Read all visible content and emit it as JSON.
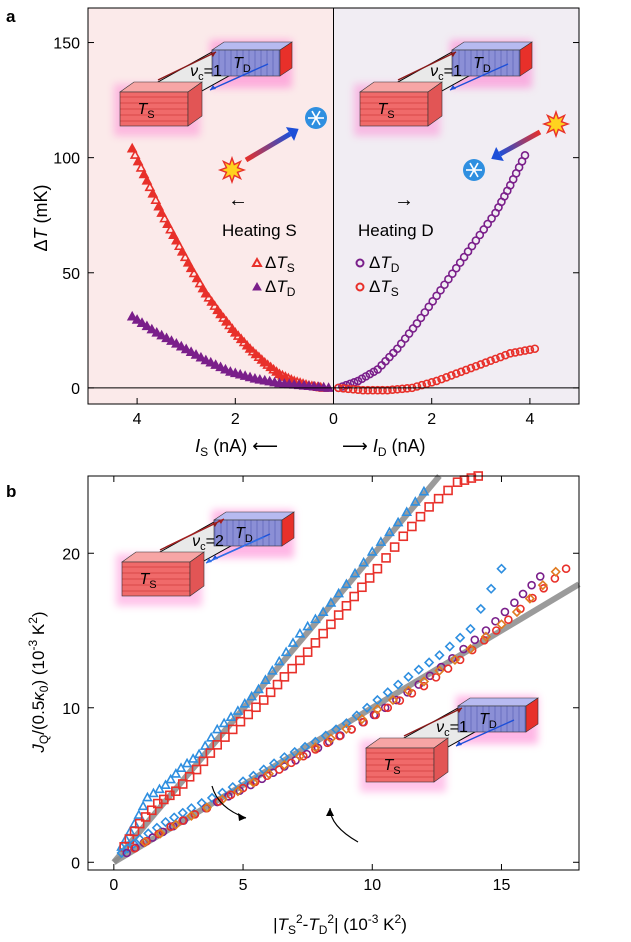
{
  "colors": {
    "red": "#e8302a",
    "purple": "#7a1f8a",
    "blue": "#2f8fe0",
    "orange": "#e07a20",
    "fit": "#8a8a8a",
    "bg_left": "#fbeaea",
    "bg_right": "#f1edf3",
    "slab_red": "#f06a6a",
    "slab_blue": "#8b8fd6",
    "glow": "#ff7ad0"
  },
  "panel_a": {
    "label": "a",
    "ylabel_delta": "Δ",
    "ylabel_var": "T",
    "ylabel_unit": " (mK)",
    "x_left": {
      "var": "I",
      "sub": "S",
      "text": " (nA) ⟵"
    },
    "x_right": {
      "pre": "⟶ ",
      "var": "I",
      "sub": "D",
      "text": " (nA)"
    },
    "arrow_left": "←",
    "arrow_right": "→",
    "heating_s": "Heating S",
    "heating_d": "Heating D",
    "legend_s": [
      {
        "delta": "Δ",
        "var": "T",
        "sub": "S"
      },
      {
        "delta": "Δ",
        "var": "T",
        "sub": "D"
      }
    ],
    "legend_d": [
      {
        "delta": "Δ",
        "var": "T",
        "sub": "D"
      },
      {
        "delta": "Δ",
        "var": "T",
        "sub": "S"
      }
    ],
    "inset": {
      "nu": "ν",
      "nu_sub": "c",
      "nu_val": "=1",
      "ts": "T",
      "ts_sub": "S",
      "td": "T",
      "td_sub": "D"
    }
  },
  "panel_b": {
    "label": "b",
    "ylabel": {
      "var": "J",
      "sub": "Q",
      "mid": "/(0.5",
      "kappa": "κ",
      "ksub": "0",
      "end": ") (10",
      "exp1": "-3",
      "unit": " K",
      "exp2": "2",
      "close": ")"
    },
    "xlabel": {
      "bar": "|",
      "var1": "T",
      "sub1": "S",
      "exp1": "2",
      "minus": "-",
      "var2": "T",
      "sub2": "D",
      "exp2": "2",
      "bar2": "|",
      "unit": " (10",
      "exp3": "-3",
      "k": " K",
      "exp4": "2",
      "close": ")"
    },
    "inset_top": {
      "nu": "ν",
      "nu_sub": "c",
      "nu_val": "=2",
      "ts": "T",
      "ts_sub": "S",
      "td": "T",
      "td_sub": "D"
    },
    "inset_bottom": {
      "nu": "ν",
      "nu_sub": "c",
      "nu_val": "=1",
      "ts": "T",
      "ts_sub": "S",
      "td": "T",
      "td_sub": "D"
    }
  },
  "chart_data": [
    {
      "type": "scatter",
      "panel": "a",
      "xlim": [
        -5,
        5
      ],
      "ylim": [
        -7,
        165
      ],
      "x_ticks": [
        "4",
        "2",
        "0",
        "2",
        "4"
      ],
      "y_ticks": [
        "0",
        "50",
        "100",
        "150"
      ],
      "series": [
        {
          "name": "ΔTS (Heating S)",
          "marker": "triangle",
          "color": "red",
          "x": [
            4.1,
            3.8,
            3.5,
            3.2,
            2.9,
            2.6,
            2.3,
            2.0,
            1.7,
            1.4,
            1.1,
            0.8,
            0.5,
            0.2
          ],
          "y": [
            104,
            90,
            76,
            64,
            52,
            41,
            32,
            24,
            17,
            11,
            6,
            3,
            1,
            0
          ]
        },
        {
          "name": "ΔTD (Heating S)",
          "marker": "triangle",
          "color": "purple",
          "x": [
            4.1,
            3.6,
            3.1,
            2.6,
            2.1,
            1.6,
            1.1,
            0.6,
            0.1
          ],
          "y": [
            31,
            24,
            18,
            12,
            7,
            4,
            2,
            1,
            0
          ]
        },
        {
          "name": "ΔTD (Heating D)",
          "marker": "circle",
          "color": "purple",
          "x": [
            0.1,
            0.5,
            0.9,
            1.3,
            1.7,
            2.1,
            2.5,
            2.9,
            3.3,
            3.6,
            3.9
          ],
          "y": [
            0,
            3,
            8,
            17,
            28,
            40,
            52,
            64,
            76,
            88,
            101
          ]
        },
        {
          "name": "ΔTS (Heating D)",
          "marker": "circle",
          "color": "red",
          "x": [
            0.1,
            0.6,
            1.1,
            1.6,
            2.1,
            2.6,
            3.1,
            3.6,
            4.1
          ],
          "y": [
            0,
            -1,
            -1,
            0,
            3,
            7,
            11,
            15,
            17
          ]
        }
      ]
    },
    {
      "type": "scatter",
      "panel": "b",
      "xlim": [
        -1,
        18
      ],
      "ylim": [
        -0.5,
        25
      ],
      "x_ticks": [
        "0",
        "5",
        "10",
        "15"
      ],
      "y_ticks": [
        "0",
        "10",
        "20"
      ],
      "series": [
        {
          "name": "νc=2 triangles",
          "marker": "triangle",
          "color": "blue",
          "x": [
            0.3,
            0.8,
            1.3,
            2.0,
            2.6,
            3.3,
            4.0,
            4.8,
            5.6,
            6.4,
            7.2,
            8.1,
            9.0,
            10.0,
            11.0,
            12.0
          ],
          "y": [
            1.0,
            2.5,
            4.2,
            5.0,
            6.1,
            7.0,
            8.6,
            9.8,
            11.2,
            13.0,
            14.8,
            16.2,
            18.0,
            20.1,
            22.0,
            24.0
          ]
        },
        {
          "name": "νc=2 squares",
          "marker": "square",
          "color": "red",
          "x": [
            0.4,
            1.0,
            1.7,
            2.4,
            3.2,
            4.0,
            4.9,
            5.8,
            6.6,
            7.5,
            8.4,
            9.3,
            10.2,
            11.2,
            12.2,
            13.3,
            14.1
          ],
          "y": [
            1.0,
            2.5,
            3.8,
            4.6,
            6.0,
            7.6,
            9.1,
            10.5,
            12.0,
            13.6,
            15.4,
            17.2,
            19.0,
            21.1,
            23.0,
            24.6,
            25.0
          ]
        },
        {
          "name": "νc=1 diamonds",
          "marker": "diamond",
          "color": "blue",
          "x": [
            0.3,
            1.0,
            2.0,
            3.0,
            4.2,
            5.4,
            6.6,
            7.8,
            9.0,
            10.2,
            11.4,
            12.6,
            13.8,
            15.0
          ],
          "y": [
            0.6,
            1.5,
            2.6,
            3.5,
            4.5,
            5.6,
            6.8,
            7.8,
            9.0,
            10.5,
            12.0,
            13.4,
            15.1,
            19.0
          ]
        },
        {
          "name": "νc=1 circles purple",
          "marker": "circle",
          "color": "purple",
          "x": [
            0.5,
            1.5,
            2.7,
            4.0,
            5.3,
            6.6,
            7.9,
            9.2,
            10.5,
            11.8,
            13.1,
            14.4,
            15.5,
            16.5
          ],
          "y": [
            0.6,
            1.6,
            2.7,
            3.9,
            5.0,
            6.2,
            7.4,
            8.6,
            10.0,
            11.5,
            13.2,
            15.0,
            16.8,
            18.5
          ]
        },
        {
          "name": "νc=1 circles red",
          "marker": "circle",
          "color": "red",
          "x": [
            0.8,
            2.2,
            3.6,
            5.0,
            6.4,
            7.8,
            9.2,
            10.6,
            12.0,
            13.4,
            14.8,
            16.2,
            17.5
          ],
          "y": [
            0.9,
            2.3,
            3.5,
            4.8,
            6.0,
            7.3,
            8.6,
            10.0,
            11.4,
            13.1,
            15.0,
            17.1,
            19.0
          ]
        },
        {
          "name": "νc=1 diamonds orange",
          "marker": "diamond",
          "color": "orange",
          "x": [
            1.2,
            3.0,
            4.8,
            6.6,
            8.4,
            10.2,
            12.0,
            13.8,
            15.6,
            17.1
          ],
          "y": [
            1.3,
            3.0,
            4.6,
            6.3,
            8.0,
            9.9,
            11.7,
            13.8,
            16.2,
            18.8
          ]
        }
      ],
      "fit_lines": [
        {
          "name": "fit νc=2",
          "x": [
            0,
            12.6
          ],
          "y": [
            0,
            25.0
          ]
        },
        {
          "name": "fit νc=1",
          "x": [
            0,
            18
          ],
          "y": [
            0,
            18
          ]
        }
      ]
    }
  ]
}
